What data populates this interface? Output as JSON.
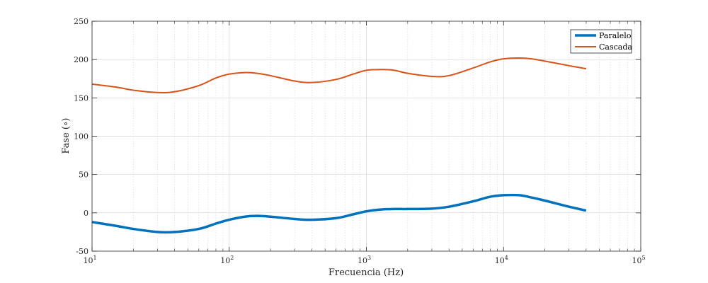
{
  "chart_data": {
    "type": "line",
    "xscale": "log",
    "xlim": [
      10,
      100000
    ],
    "ylim": [
      -50,
      250
    ],
    "xlabel": "Frecuencia (Hz)",
    "ylabel": "Fase (∘)",
    "x_ticks": [
      10,
      100,
      1000,
      10000,
      100000
    ],
    "x_tick_labels": [
      {
        "base": "10",
        "exp": "1"
      },
      {
        "base": "10",
        "exp": "2"
      },
      {
        "base": "10",
        "exp": "3"
      },
      {
        "base": "10",
        "exp": "4"
      },
      {
        "base": "10",
        "exp": "5"
      }
    ],
    "y_ticks": [
      -50,
      0,
      50,
      100,
      150,
      200,
      250
    ],
    "y_tick_labels": [
      "-50",
      "0",
      "50",
      "100",
      "150",
      "200",
      "250"
    ],
    "grid": "on (major and minor x, major y)",
    "legend_position": "top-right",
    "series": [
      {
        "name": "Paralelo",
        "color": "#0072BD",
        "x": [
          10,
          15,
          20,
          30,
          40,
          60,
          80,
          100,
          130,
          160,
          200,
          300,
          400,
          600,
          800,
          1000,
          1300,
          1600,
          2000,
          3000,
          4000,
          6000,
          8000,
          10000,
          13000,
          16000,
          20000,
          30000,
          40000
        ],
        "y": [
          -12,
          -17,
          -21,
          -25,
          -25,
          -21,
          -14,
          -9,
          -5,
          -4,
          -5,
          -8,
          -9,
          -7,
          -2,
          2,
          4.5,
          5,
          5,
          5.5,
          8,
          15,
          21,
          23,
          23,
          20,
          16,
          8,
          3
        ]
      },
      {
        "name": "Cascada",
        "color": "#D95319",
        "x": [
          10,
          15,
          20,
          30,
          40,
          60,
          80,
          100,
          130,
          160,
          200,
          300,
          400,
          600,
          800,
          1000,
          1300,
          1600,
          2000,
          3000,
          4000,
          6000,
          8000,
          10000,
          13000,
          16000,
          20000,
          30000,
          40000
        ],
        "y": [
          168,
          164,
          160,
          157,
          158,
          166,
          176,
          181,
          183,
          182,
          179,
          172,
          170,
          174,
          181,
          186,
          187,
          186,
          182,
          178,
          179,
          189,
          197,
          201,
          202,
          201,
          198,
          192,
          188
        ]
      }
    ]
  }
}
